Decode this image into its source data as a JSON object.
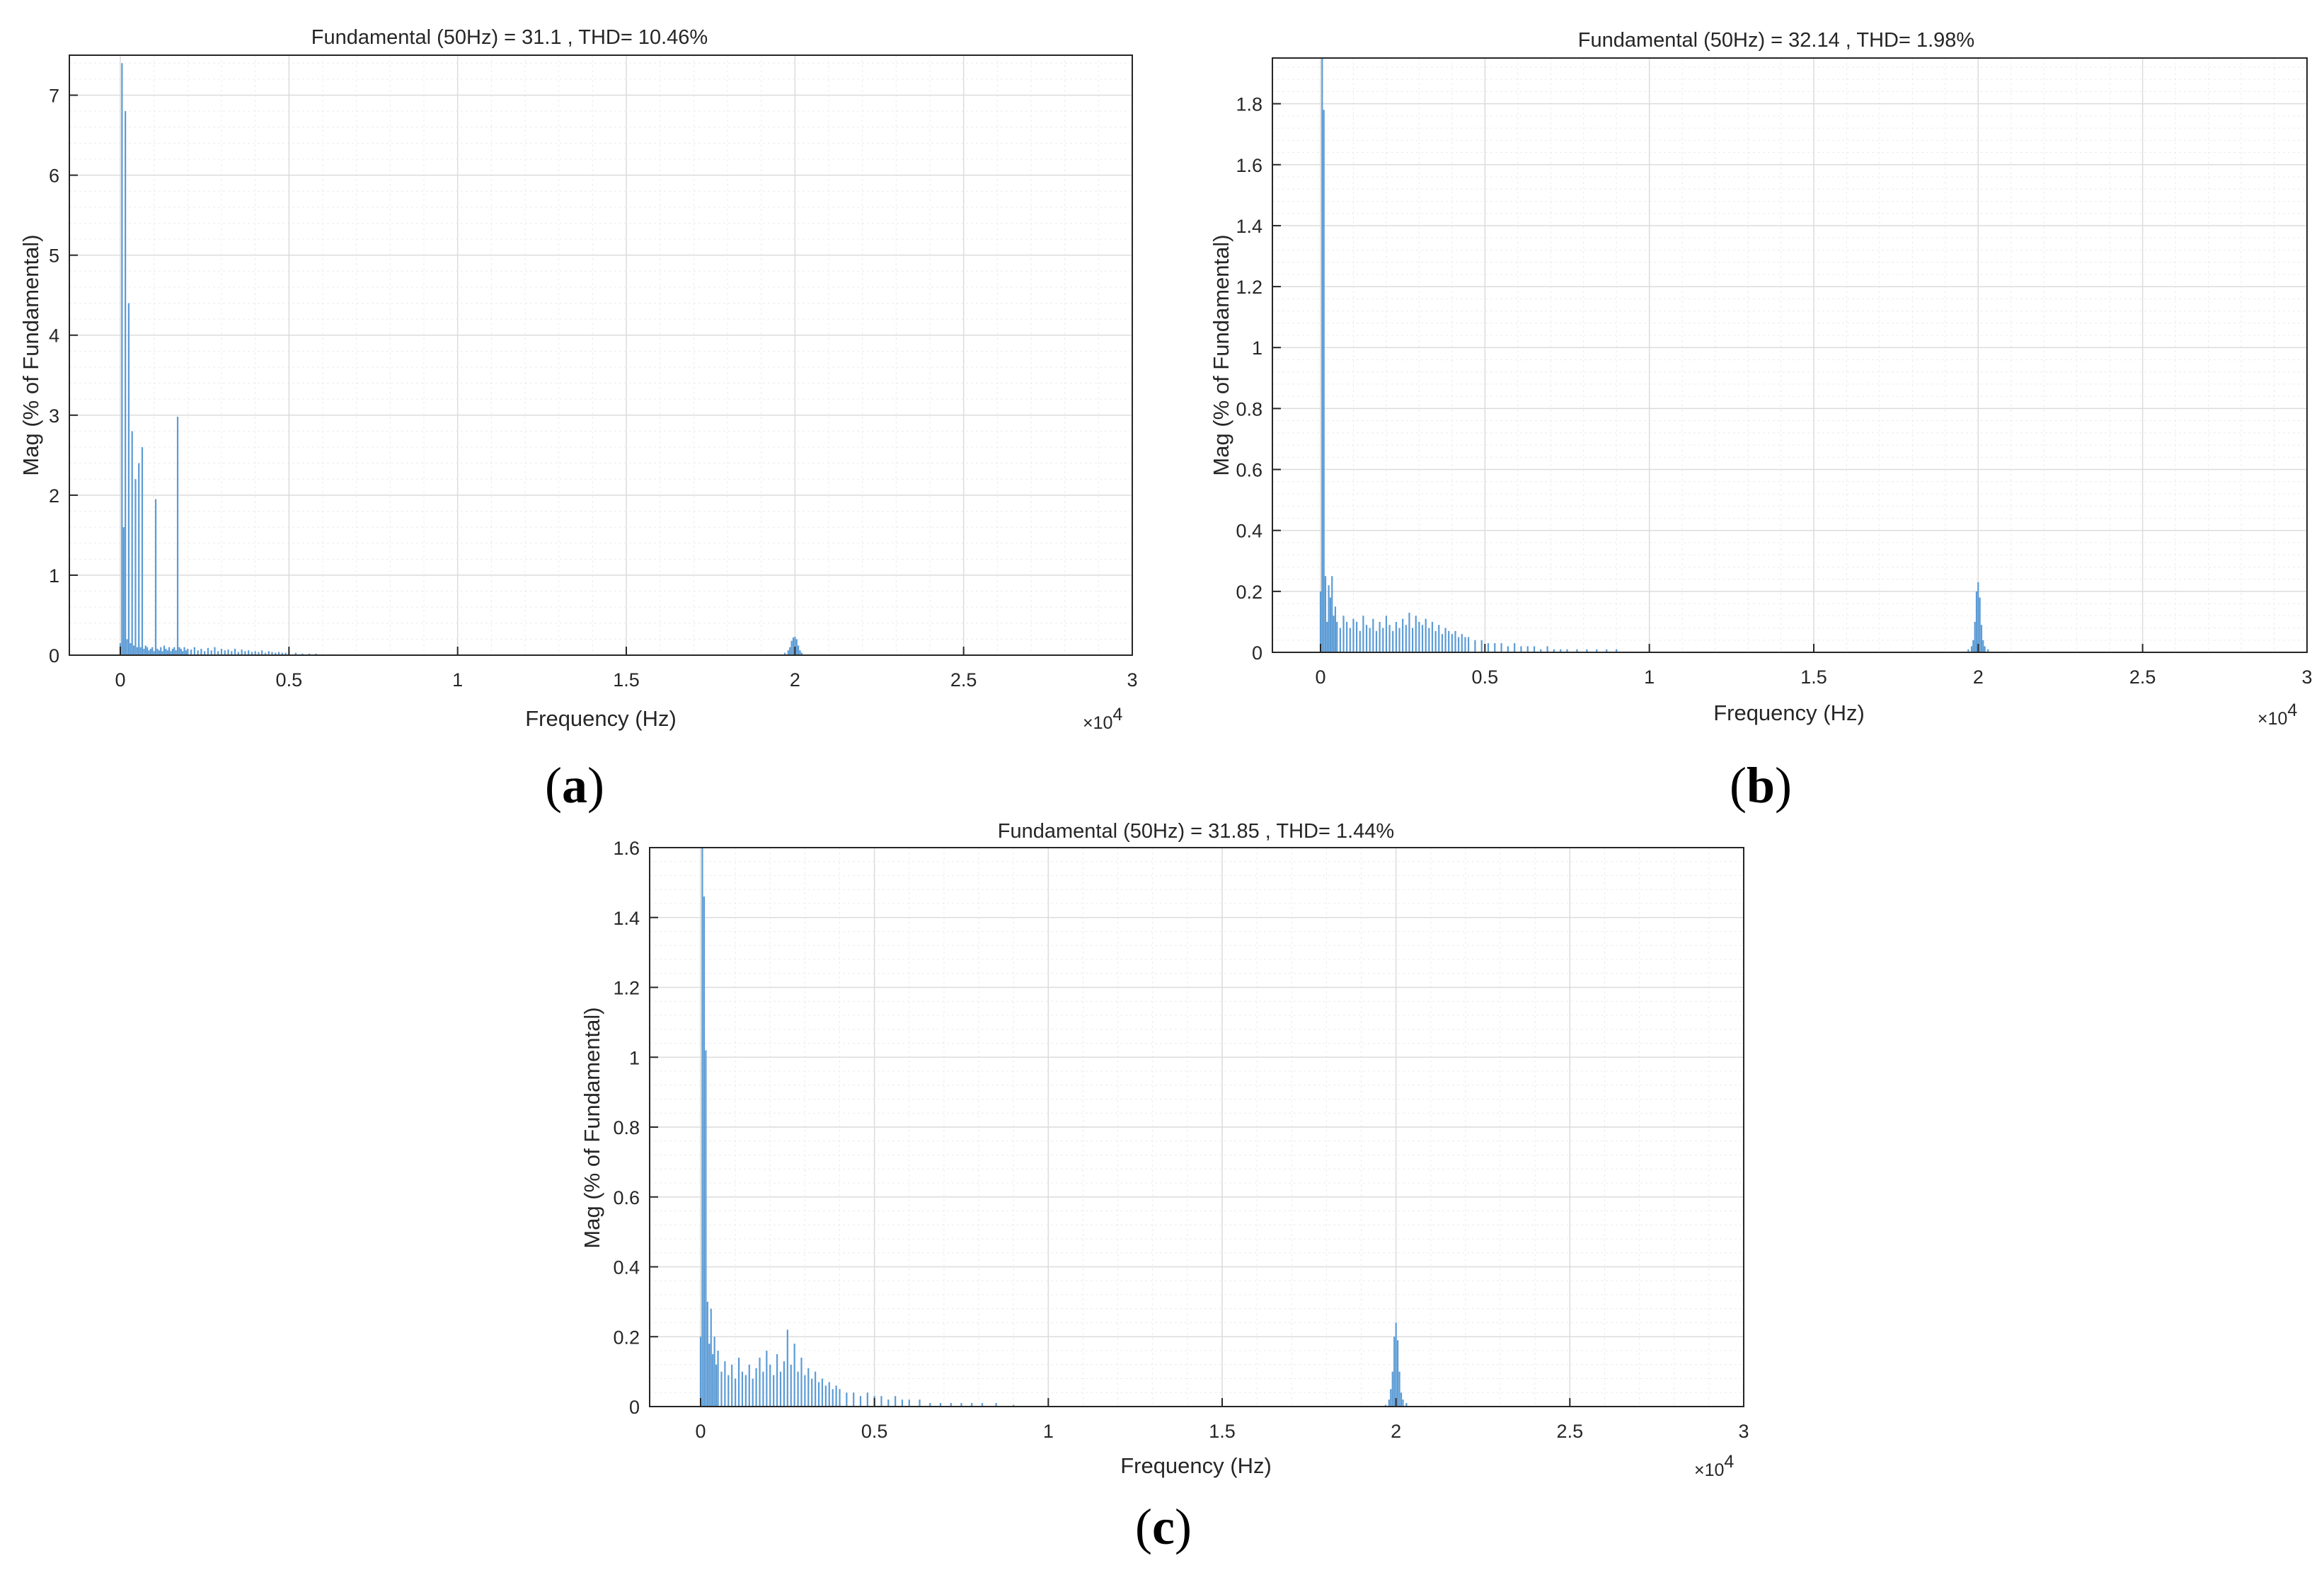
{
  "panels": [
    {
      "letter": "a",
      "title": "Fundamental (50Hz) = 31.1 , THD= 10.46%",
      "xlabel": "Frequency (Hz)",
      "ylabel": "Mag (% of Fundamental)",
      "x_multiplier": "×10",
      "x_exponent": "4"
    },
    {
      "letter": "b",
      "title": "Fundamental (50Hz) = 32.14 , THD= 1.98%",
      "xlabel": "Frequency (Hz)",
      "ylabel": "Mag (% of Fundamental)",
      "x_multiplier": "×10",
      "x_exponent": "4"
    },
    {
      "letter": "c",
      "title": "Fundamental (50Hz) = 31.85 , THD= 1.44%",
      "xlabel": "Frequency (Hz)",
      "ylabel": "Mag (% of Fundamental)",
      "x_multiplier": "×10",
      "x_exponent": "4"
    }
  ],
  "chart_data": [
    {
      "type": "bar",
      "title": "Fundamental (50Hz) = 31.1 , THD= 10.46%",
      "xlabel": "Frequency (Hz)",
      "ylabel": "Mag (% of Fundamental)",
      "x_scale_note": "×10^4",
      "xlim": [
        0,
        30000
      ],
      "ylim": [
        0,
        7.5
      ],
      "xticks": [
        0,
        5000,
        10000,
        15000,
        20000,
        25000,
        30000
      ],
      "xtick_labels": [
        "0",
        "0.5",
        "1",
        "1.5",
        "2",
        "2.5",
        "3"
      ],
      "yticks": [
        0,
        1,
        2,
        3,
        4,
        5,
        6,
        7
      ],
      "ytick_labels": [
        "0",
        "1",
        "2",
        "3",
        "4",
        "5",
        "6",
        "7"
      ],
      "grid": true,
      "color": "#5b9bd5",
      "series": [
        {
          "x": [
            0,
            50,
            100,
            150,
            200,
            250,
            300,
            350,
            400,
            450,
            500,
            550,
            600,
            650,
            700,
            750,
            800,
            850,
            900,
            950,
            1000,
            1050,
            1100,
            1150,
            1200,
            1250,
            1300,
            1350,
            1400,
            1450,
            1500,
            1550,
            1600,
            1650,
            1700,
            1750,
            1800,
            1850,
            1900,
            1950,
            2000,
            2100,
            2200,
            2300,
            2400,
            2500,
            2600,
            2700,
            2800,
            2900,
            3000,
            3100,
            3200,
            3300,
            3400,
            3500,
            3600,
            3700,
            3800,
            3900,
            4000,
            4100,
            4200,
            4300,
            4400,
            4500,
            4600,
            4700,
            4800,
            4900,
            5000,
            5200,
            5400,
            5600,
            5800,
            6000,
            6200,
            6400,
            19600,
            19700,
            19800,
            19850,
            19900,
            19950,
            20000,
            20050,
            20100,
            20150,
            20200,
            20300
          ],
          "y": [
            0.15,
            7.4,
            1.6,
            6.8,
            0.2,
            4.4,
            0.15,
            2.8,
            0.12,
            2.2,
            0.1,
            2.4,
            0.1,
            2.6,
            0.08,
            0.12,
            0.1,
            0.06,
            0.08,
            0.1,
            0.05,
            1.95,
            0.08,
            0.06,
            0.1,
            0.05,
            0.12,
            0.08,
            0.06,
            0.1,
            0.05,
            0.08,
            0.1,
            0.06,
            2.98,
            0.1,
            0.08,
            0.05,
            0.1,
            0.06,
            0.08,
            0.07,
            0.1,
            0.06,
            0.08,
            0.05,
            0.09,
            0.06,
            0.1,
            0.05,
            0.08,
            0.06,
            0.07,
            0.05,
            0.08,
            0.04,
            0.07,
            0.05,
            0.06,
            0.04,
            0.05,
            0.04,
            0.06,
            0.03,
            0.05,
            0.04,
            0.03,
            0.04,
            0.03,
            0.03,
            0.02,
            0.03,
            0.02,
            0.02,
            0.02,
            0.01,
            0.01,
            0.01,
            0.01,
            0.03,
            0.06,
            0.1,
            0.18,
            0.22,
            0.23,
            0.2,
            0.12,
            0.06,
            0.03,
            0.01
          ]
        }
      ]
    },
    {
      "type": "bar",
      "title": "Fundamental (50Hz) = 32.14 , THD= 1.98%",
      "xlabel": "Frequency (Hz)",
      "ylabel": "Mag (% of Fundamental)",
      "x_scale_note": "×10^4",
      "xlim": [
        0,
        30000
      ],
      "ylim": [
        0,
        1.95
      ],
      "xticks": [
        0,
        5000,
        10000,
        15000,
        20000,
        25000,
        30000
      ],
      "xtick_labels": [
        "0",
        "0.5",
        "1",
        "1.5",
        "2",
        "2.5",
        "3"
      ],
      "yticks": [
        0,
        0.2,
        0.4,
        0.6,
        0.8,
        1.0,
        1.2,
        1.4,
        1.6,
        1.8
      ],
      "ytick_labels": [
        "0",
        "0.2",
        "0.4",
        "0.6",
        "0.8",
        "1",
        "1.2",
        "1.4",
        "1.6",
        "1.8"
      ],
      "grid": true,
      "color": "#5b9bd5",
      "series": [
        {
          "x": [
            0,
            50,
            100,
            150,
            200,
            250,
            300,
            350,
            400,
            450,
            500,
            600,
            700,
            800,
            900,
            1000,
            1100,
            1200,
            1300,
            1400,
            1500,
            1600,
            1700,
            1800,
            1900,
            2000,
            2100,
            2200,
            2300,
            2400,
            2500,
            2600,
            2700,
            2800,
            2900,
            3000,
            3100,
            3200,
            3300,
            3400,
            3500,
            3600,
            3700,
            3800,
            3900,
            4000,
            4100,
            4200,
            4300,
            4400,
            4500,
            4700,
            4900,
            5100,
            5300,
            5500,
            5700,
            5900,
            6100,
            6300,
            6500,
            6700,
            6900,
            7100,
            7300,
            7500,
            7800,
            8100,
            8400,
            8700,
            9000,
            19700,
            19800,
            19850,
            19900,
            19950,
            20000,
            20050,
            20100,
            20150,
            20200,
            20300
          ],
          "y": [
            0.2,
            1.95,
            1.78,
            0.25,
            0.1,
            0.22,
            0.18,
            0.25,
            0.12,
            0.15,
            0.1,
            0.08,
            0.12,
            0.1,
            0.08,
            0.11,
            0.1,
            0.07,
            0.12,
            0.09,
            0.08,
            0.11,
            0.07,
            0.1,
            0.08,
            0.12,
            0.09,
            0.07,
            0.1,
            0.08,
            0.11,
            0.09,
            0.13,
            0.08,
            0.12,
            0.1,
            0.09,
            0.11,
            0.08,
            0.1,
            0.07,
            0.09,
            0.06,
            0.08,
            0.07,
            0.06,
            0.07,
            0.05,
            0.06,
            0.05,
            0.05,
            0.04,
            0.04,
            0.03,
            0.03,
            0.03,
            0.02,
            0.03,
            0.02,
            0.02,
            0.02,
            0.01,
            0.02,
            0.01,
            0.01,
            0.01,
            0.01,
            0.01,
            0.01,
            0.01,
            0.01,
            0.01,
            0.02,
            0.04,
            0.1,
            0.2,
            0.23,
            0.18,
            0.09,
            0.04,
            0.02,
            0.01
          ]
        }
      ]
    },
    {
      "type": "bar",
      "title": "Fundamental (50Hz) = 31.85 , THD= 1.44%",
      "xlabel": "Frequency (Hz)",
      "ylabel": "Mag (% of Fundamental)",
      "x_scale_note": "×10^4",
      "xlim": [
        0,
        30000
      ],
      "ylim": [
        0,
        1.6
      ],
      "xticks": [
        0,
        5000,
        10000,
        15000,
        20000,
        25000,
        30000
      ],
      "xtick_labels": [
        "0",
        "0.5",
        "1",
        "1.5",
        "2",
        "2.5",
        "3"
      ],
      "yticks": [
        0,
        0.2,
        0.4,
        0.6,
        0.8,
        1.0,
        1.2,
        1.4,
        1.6
      ],
      "ytick_labels": [
        "0",
        "0.2",
        "0.4",
        "0.6",
        "0.8",
        "1",
        "1.2",
        "1.4",
        "1.6"
      ],
      "grid": true,
      "color": "#5b9bd5",
      "series": [
        {
          "x": [
            0,
            50,
            100,
            150,
            200,
            250,
            300,
            350,
            400,
            450,
            500,
            600,
            700,
            800,
            900,
            1000,
            1100,
            1200,
            1300,
            1400,
            1500,
            1600,
            1700,
            1800,
            1900,
            2000,
            2100,
            2200,
            2300,
            2400,
            2500,
            2600,
            2700,
            2800,
            2900,
            3000,
            3100,
            3200,
            3300,
            3400,
            3500,
            3600,
            3700,
            3800,
            3900,
            4000,
            4200,
            4400,
            4600,
            4800,
            5000,
            5200,
            5400,
            5600,
            5800,
            6000,
            6300,
            6600,
            6900,
            7200,
            7500,
            7800,
            8100,
            8500,
            9000,
            19700,
            19800,
            19850,
            19900,
            19950,
            20000,
            20050,
            20100,
            20150,
            20200,
            20300
          ],
          "y": [
            0.2,
            1.6,
            1.46,
            1.02,
            0.3,
            0.18,
            0.28,
            0.15,
            0.2,
            0.12,
            0.16,
            0.1,
            0.13,
            0.09,
            0.12,
            0.08,
            0.14,
            0.1,
            0.09,
            0.12,
            0.08,
            0.11,
            0.14,
            0.1,
            0.16,
            0.12,
            0.09,
            0.15,
            0.1,
            0.13,
            0.22,
            0.12,
            0.18,
            0.1,
            0.14,
            0.09,
            0.11,
            0.08,
            0.1,
            0.07,
            0.08,
            0.06,
            0.07,
            0.05,
            0.06,
            0.05,
            0.04,
            0.04,
            0.03,
            0.04,
            0.03,
            0.03,
            0.02,
            0.03,
            0.02,
            0.02,
            0.02,
            0.01,
            0.01,
            0.01,
            0.01,
            0.01,
            0.01,
            0.01,
            0.005,
            0.005,
            0.02,
            0.05,
            0.1,
            0.2,
            0.24,
            0.19,
            0.1,
            0.04,
            0.02,
            0.01
          ]
        }
      ]
    }
  ]
}
